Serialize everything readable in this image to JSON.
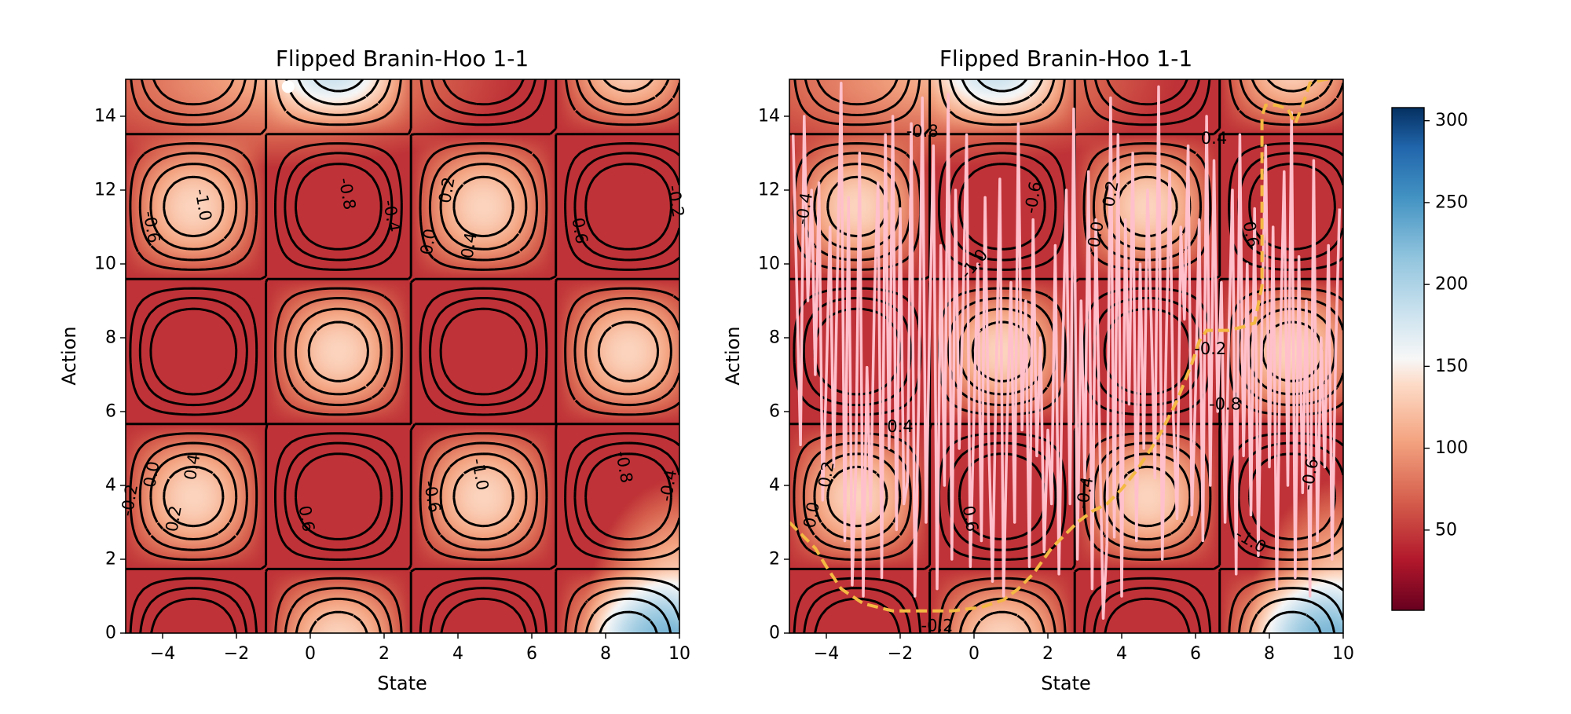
{
  "colors": {
    "colormap": "RdBu",
    "contour_solid": "#000000",
    "contour_dashed": "#000000",
    "trajectory": "#ffc0cb",
    "boundary": "#f4b942",
    "start_marker": "#ffffff"
  },
  "chart_data": [
    {
      "type": "heatmap",
      "title": "Flipped Branin-Hoo 1-1",
      "xlabel": "State",
      "ylabel": "Action",
      "xlim": [
        -5,
        10
      ],
      "ylim": [
        0,
        15
      ],
      "xticks": [
        -4,
        -2,
        0,
        2,
        4,
        6,
        8,
        10
      ],
      "yticks": [
        0,
        2,
        4,
        6,
        8,
        10,
        12,
        14
      ],
      "xtick_labels": [
        "−4",
        "−2",
        "0",
        "2",
        "4",
        "6",
        "8",
        "10"
      ],
      "ytick_labels": [
        "0",
        "2",
        "4",
        "6",
        "8",
        "10",
        "12",
        "14"
      ],
      "contour_levels": [
        -1.0,
        -0.8,
        -0.6,
        -0.4,
        -0.2,
        0.0,
        0.2,
        0.4,
        0.6
      ],
      "contour_labels": [
        {
          "text": "-1.0",
          "x": -2.9,
          "y": 11.6,
          "rot": 80
        },
        {
          "text": "-0.8",
          "x": 1.0,
          "y": 11.9,
          "rot": 80
        },
        {
          "text": "-0.6",
          "x": -4.3,
          "y": 11.0,
          "rot": 80
        },
        {
          "text": "-0.4",
          "x": 2.2,
          "y": 11.3,
          "rot": 80
        },
        {
          "text": "0.0",
          "x": 3.2,
          "y": 10.6,
          "rot": -80
        },
        {
          "text": "0.2",
          "x": 3.7,
          "y": 12.0,
          "rot": -80
        },
        {
          "text": "0.4",
          "x": 4.3,
          "y": 10.5,
          "rot": -80
        },
        {
          "text": "0.6",
          "x": 7.3,
          "y": 10.9,
          "rot": 80
        },
        {
          "text": "-0.2",
          "x": 9.9,
          "y": 11.7,
          "rot": 80
        },
        {
          "text": "0.0",
          "x": -4.3,
          "y": 4.3,
          "rot": -80
        },
        {
          "text": "0.4",
          "x": -3.2,
          "y": 4.5,
          "rot": -80
        },
        {
          "text": "-0.2",
          "x": -4.9,
          "y": 3.6,
          "rot": -80
        },
        {
          "text": "0.2",
          "x": -3.7,
          "y": 3.1,
          "rot": -80
        },
        {
          "text": "0.6",
          "x": -0.1,
          "y": 3.1,
          "rot": 80
        },
        {
          "text": "-0.6",
          "x": 3.3,
          "y": 3.7,
          "rot": 80
        },
        {
          "text": "-1.0",
          "x": 4.6,
          "y": 4.3,
          "rot": 80
        },
        {
          "text": "-0.8",
          "x": 8.5,
          "y": 4.5,
          "rot": 80
        },
        {
          "text": "-0.4",
          "x": 9.7,
          "y": 4.0,
          "rot": -80
        }
      ],
      "start_marker": {
        "x": -0.6,
        "y": 14.8
      }
    },
    {
      "type": "heatmap",
      "title": "Flipped Branin-Hoo 1-1",
      "xlabel": "State",
      "ylabel": "Action",
      "xlim": [
        -5,
        10
      ],
      "ylim": [
        0,
        15
      ],
      "xticks": [
        -4,
        -2,
        0,
        2,
        4,
        6,
        8,
        10
      ],
      "yticks": [
        0,
        2,
        4,
        6,
        8,
        10,
        12,
        14
      ],
      "xtick_labels": [
        "−4",
        "−2",
        "0",
        "2",
        "4",
        "6",
        "8",
        "10"
      ],
      "ytick_labels": [
        "0",
        "2",
        "4",
        "6",
        "8",
        "10",
        "12",
        "14"
      ],
      "contour_levels": [
        -1.0,
        -0.8,
        -0.6,
        -0.4,
        -0.2,
        0.0,
        0.2,
        0.4,
        0.6
      ],
      "contour_labels": [
        {
          "text": "-0.8",
          "x": -1.4,
          "y": 13.6,
          "rot": 0
        },
        {
          "text": "-0.4",
          "x": -4.6,
          "y": 11.5,
          "rot": -80
        },
        {
          "text": "-0.6",
          "x": 1.6,
          "y": 11.8,
          "rot": -80
        },
        {
          "text": "-1.0",
          "x": 0.0,
          "y": 10.0,
          "rot": -50
        },
        {
          "text": "0.0",
          "x": 3.3,
          "y": 10.8,
          "rot": -80
        },
        {
          "text": "0.2",
          "x": 3.7,
          "y": 11.9,
          "rot": -80
        },
        {
          "text": "0.4",
          "x": 6.5,
          "y": 13.4,
          "rot": 0
        },
        {
          "text": "0.6",
          "x": 7.5,
          "y": 10.8,
          "rot": 80
        },
        {
          "text": "-0.2",
          "x": 6.4,
          "y": 7.7,
          "rot": 0
        },
        {
          "text": "-0.8",
          "x": 6.8,
          "y": 6.2,
          "rot": 0
        },
        {
          "text": "0.4",
          "x": -2.0,
          "y": 5.6,
          "rot": 0
        },
        {
          "text": "0.2",
          "x": -4.0,
          "y": 4.3,
          "rot": -80
        },
        {
          "text": "0.0",
          "x": -4.4,
          "y": 3.2,
          "rot": -80
        },
        {
          "text": "0.6",
          "x": -0.1,
          "y": 3.1,
          "rot": 80
        },
        {
          "text": "-0.4",
          "x": 3.0,
          "y": 3.8,
          "rot": -80
        },
        {
          "text": "-1.0",
          "x": 7.5,
          "y": 2.5,
          "rot": 30
        },
        {
          "text": "-0.6",
          "x": 9.1,
          "y": 4.3,
          "rot": -80
        },
        {
          "text": "-0.2",
          "x": -1.0,
          "y": 0.2,
          "rot": 0
        }
      ],
      "boundary": {
        "x": [
          -5.0,
          -4.6,
          -4.3,
          -4.0,
          -3.6,
          -3.0,
          -2.2,
          -1.4,
          -0.6,
          0.2,
          0.8,
          1.2,
          1.6,
          2.1,
          2.4,
          2.8,
          3.2,
          3.6,
          4.0,
          4.4,
          4.8,
          5.1,
          5.3,
          5.5,
          5.7,
          5.9,
          6.1,
          6.3,
          6.5,
          6.9,
          7.3,
          7.6,
          7.8,
          7.8,
          7.9,
          8.2,
          8.5,
          8.7,
          8.9,
          9.1,
          9.5,
          9.7
        ],
        "y": [
          3.0,
          2.6,
          2.3,
          1.8,
          1.2,
          0.8,
          0.6,
          0.6,
          0.6,
          0.7,
          0.9,
          1.2,
          1.6,
          2.3,
          2.6,
          3.0,
          3.3,
          3.5,
          3.9,
          4.4,
          5.0,
          5.5,
          5.9,
          6.3,
          6.8,
          7.3,
          7.9,
          8.2,
          8.2,
          8.2,
          8.3,
          8.4,
          9.4,
          14.0,
          14.3,
          14.3,
          14.2,
          13.8,
          14.3,
          14.9,
          15.0,
          15.0
        ]
      },
      "trajectory": {
        "x": [
          -4.9,
          -4.7,
          -4.6,
          -4.5,
          -4.4,
          -4.3,
          -4.2,
          -4.1,
          -4.0,
          -3.9,
          -3.8,
          -3.7,
          -3.6,
          -3.5,
          -3.4,
          -3.3,
          -3.2,
          -3.1,
          -3.0,
          -2.9,
          -2.8,
          -2.7,
          -2.6,
          -2.5,
          -2.4,
          -2.3,
          -2.2,
          -2.1,
          -2.0,
          -1.9,
          -1.8,
          -1.7,
          -1.6,
          -1.5,
          -1.4,
          -1.3,
          -1.2,
          -1.1,
          -1.0,
          -0.9,
          -0.8,
          -0.7,
          -0.6,
          -0.5,
          -0.4,
          -0.3,
          -0.2,
          -0.1,
          0.0,
          0.1,
          0.2,
          0.3,
          0.4,
          0.5,
          0.6,
          0.7,
          0.8,
          0.9,
          1.0,
          1.1,
          1.2,
          1.3,
          1.4,
          1.5,
          1.6,
          1.7,
          1.8,
          1.9,
          2.0,
          2.1,
          2.2,
          2.3,
          2.4,
          2.5,
          2.6,
          2.7,
          2.8,
          2.9,
          3.0,
          3.1,
          3.2,
          3.3,
          3.4,
          3.5,
          3.6,
          3.7,
          3.8,
          3.9,
          4.0,
          4.1,
          4.2,
          4.3,
          4.4,
          4.5,
          4.6,
          4.7,
          4.8,
          4.9,
          5.0,
          5.1,
          5.2,
          5.3,
          5.4,
          5.5,
          5.6,
          5.7,
          5.8,
          5.9,
          6.0,
          6.1,
          6.2,
          6.3,
          6.4,
          6.5,
          6.6,
          6.7,
          6.8,
          6.9,
          7.0,
          7.1,
          7.2,
          7.3,
          7.4,
          7.5,
          7.6,
          7.7,
          7.8,
          7.9,
          8.0,
          8.1,
          8.2,
          8.3,
          8.4,
          8.5,
          8.6,
          8.7,
          8.8,
          8.9,
          9.0,
          9.1,
          9.2,
          9.3,
          9.4,
          9.5,
          9.6,
          9.7,
          9.8,
          9.9
        ],
        "y": [
          13.5,
          5.1,
          14.0,
          9.0,
          12.0,
          7.0,
          12.2,
          3.6,
          6.9,
          11.0,
          4.5,
          9.8,
          14.9,
          2.5,
          11.8,
          1.3,
          4.5,
          13.0,
          1.0,
          7.2,
          3.3,
          9.0,
          12.2,
          1.5,
          13.5,
          5.0,
          14.0,
          2.8,
          11.5,
          3.5,
          4.1,
          13.8,
          1.0,
          6.2,
          14.5,
          3.0,
          8.5,
          13.2,
          1.2,
          10.5,
          4.0,
          14.6,
          2.0,
          12.0,
          5.0,
          8.8,
          13.5,
          1.8,
          6.0,
          10.0,
          2.5,
          11.8,
          5.2,
          1.4,
          6.9,
          12.3,
          1.0,
          5.8,
          9.5,
          3.0,
          13.8,
          5.5,
          9.0,
          1.8,
          11.2,
          4.8,
          8.0,
          2.2,
          5.5,
          3.5,
          10.5,
          1.6,
          7.5,
          12.0,
          3.5,
          14.2,
          2.0,
          9.0,
          4.2,
          12.5,
          1.2,
          11.2,
          5.5,
          0.4,
          2.4,
          14.5,
          2.6,
          13.5,
          1.0,
          11.2,
          6.2,
          13.0,
          2.5,
          10.0,
          5.0,
          12.0,
          8.5,
          4.2,
          14.8,
          2.0,
          7.5,
          12.5,
          5.8,
          3.1,
          11.0,
          8.5,
          13.2,
          3.2,
          6.5,
          11.2,
          2.5,
          14.0,
          4.0,
          12.8,
          6.0,
          9.5,
          3.0,
          8.0,
          12.0,
          1.6,
          13.5,
          4.8,
          10.0,
          3.2,
          11.5,
          2.1,
          8.5,
          13.2,
          4.5,
          11.0,
          1.2,
          8.0,
          12.5,
          4.0,
          14.1,
          1.5,
          10.2,
          3.8,
          9.0,
          1.0,
          12.8,
          2.5,
          8.0,
          4.5,
          10.5,
          2.0,
          7.8,
          11.5
        ]
      }
    }
  ],
  "colorbar": {
    "min": 1,
    "max": 308,
    "ticks": [
      50,
      100,
      150,
      200,
      250,
      300
    ],
    "tick_labels": [
      "50",
      "100",
      "150",
      "200",
      "250",
      "300"
    ]
  }
}
